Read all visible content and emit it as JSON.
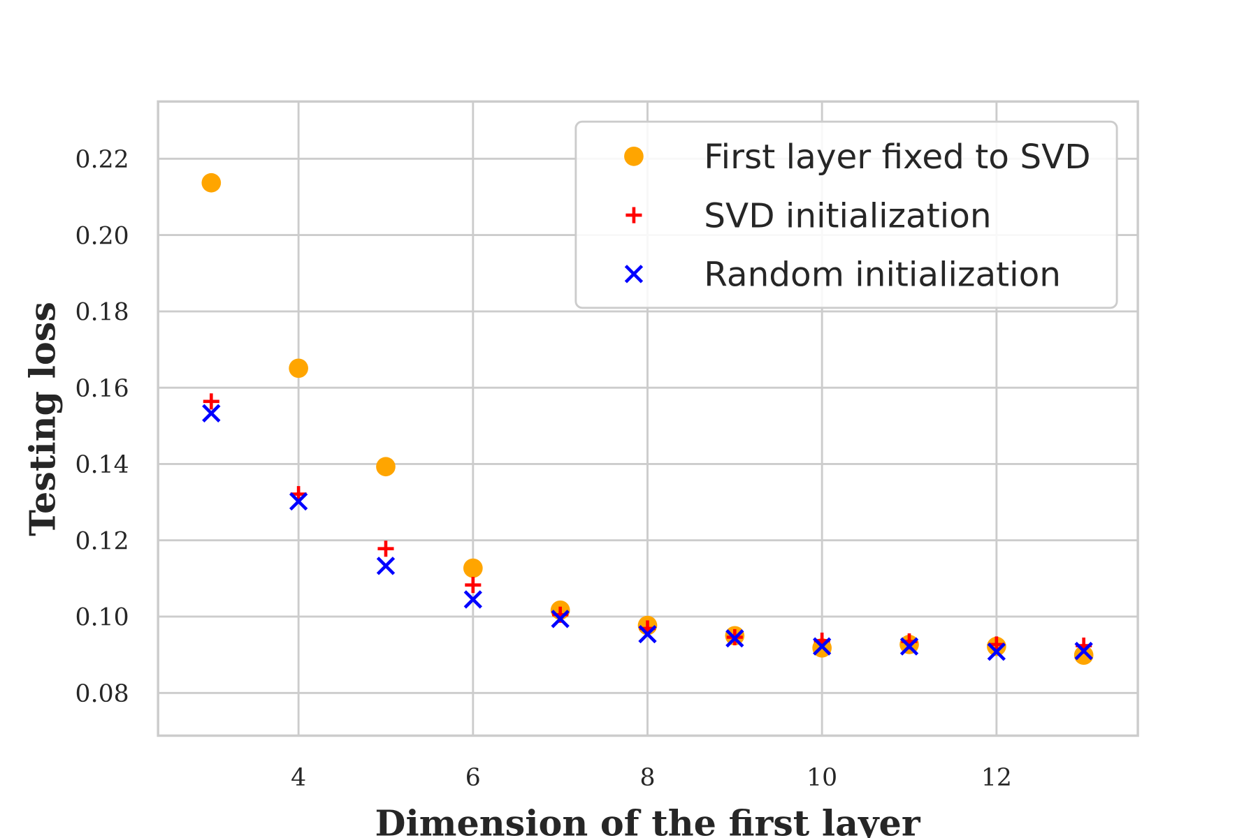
{
  "chart_data": {
    "type": "scatter",
    "title": "",
    "xlabel": "Dimension of the first layer",
    "ylabel": "Testing loss",
    "xlim": [
      2.39,
      13.62
    ],
    "ylim": [
      0.0688,
      0.235
    ],
    "xticks": [
      4,
      6,
      8,
      10,
      12
    ],
    "xtick_labels": [
      "4",
      "6",
      "8",
      "10",
      "12"
    ],
    "yticks": [
      0.08,
      0.1,
      0.12,
      0.14,
      0.16,
      0.18,
      0.2,
      0.22
    ],
    "ytick_labels": [
      "0.08",
      "0.10",
      "0.12",
      "0.14",
      "0.16",
      "0.18",
      "0.20",
      "0.22"
    ],
    "grid": true,
    "legend_position": "top-right",
    "x": [
      3,
      4,
      5,
      6,
      7,
      8,
      9,
      10,
      11,
      12,
      13
    ],
    "series": [
      {
        "name": "First layer fixed to SVD",
        "marker": "circle",
        "color": "#FFA500",
        "values": [
          0.2137,
          0.1651,
          0.1393,
          0.1127,
          0.1017,
          0.0977,
          0.095,
          0.0918,
          0.0927,
          0.0922,
          0.0899
        ]
      },
      {
        "name": "SVD initialization",
        "marker": "plus",
        "color": "#FF0000",
        "values": [
          0.1564,
          0.1321,
          0.1178,
          0.1083,
          0.1005,
          0.0969,
          0.0946,
          0.0937,
          0.0935,
          0.0927,
          0.0924
        ]
      },
      {
        "name": "Random initialization",
        "marker": "x",
        "color": "#0000FF",
        "values": [
          0.1533,
          0.1302,
          0.1133,
          0.1045,
          0.0994,
          0.0954,
          0.0943,
          0.0922,
          0.0922,
          0.0908,
          0.091
        ]
      }
    ]
  }
}
